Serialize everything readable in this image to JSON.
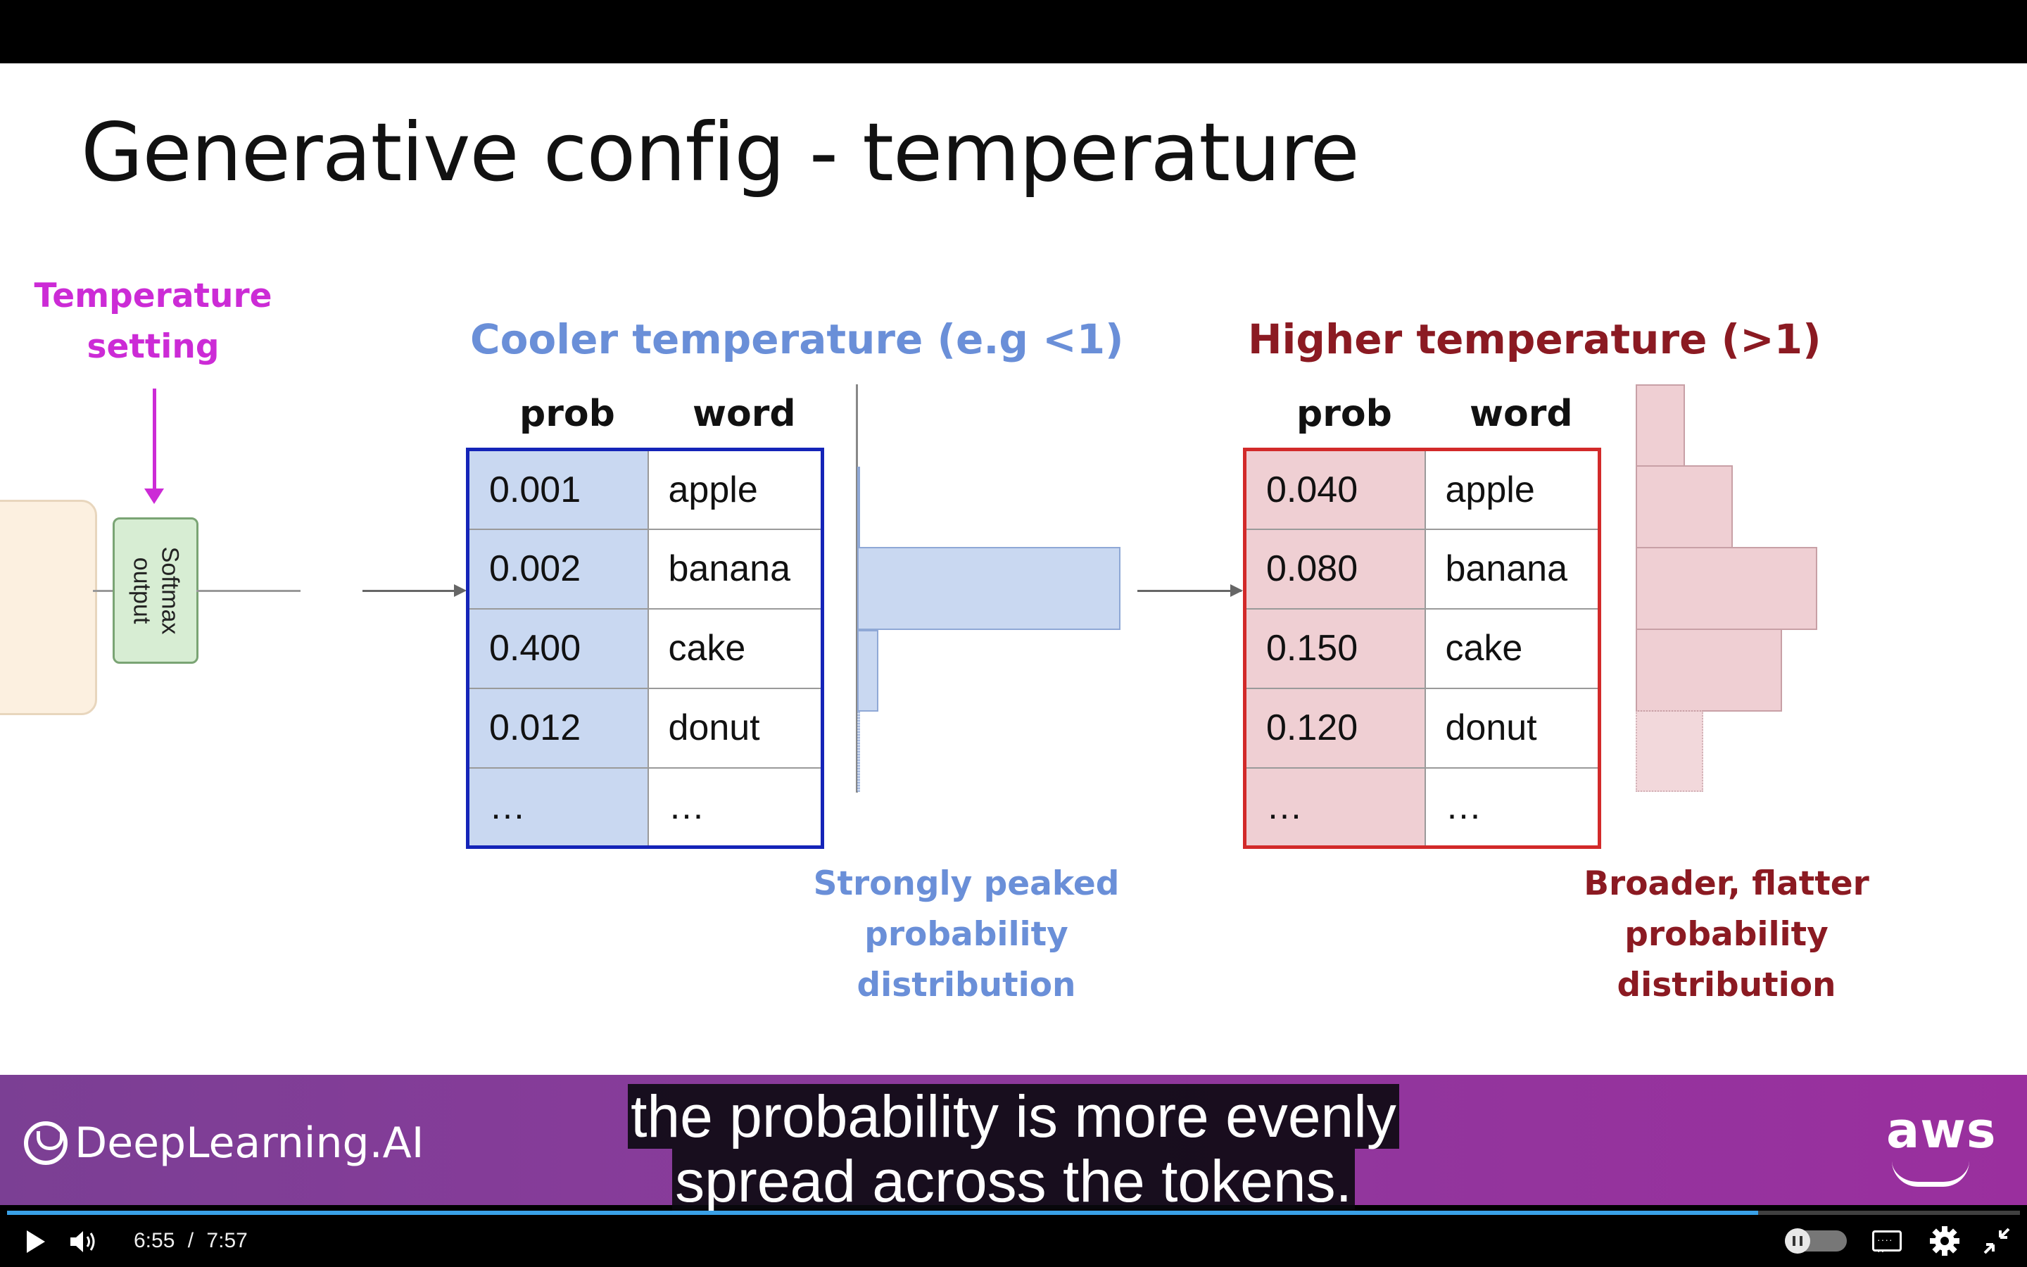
{
  "slide": {
    "title": "Generative config - temperature",
    "temperature_setting": [
      "Temperature",
      "setting"
    ],
    "softmax_label": [
      "Softmax",
      "output"
    ],
    "cool": {
      "title": "Cooler temperature (e.g <1)",
      "col_prob": "prob",
      "col_word": "word",
      "rows": [
        {
          "prob": "0.001",
          "word": "apple"
        },
        {
          "prob": "0.002",
          "word": "banana"
        },
        {
          "prob": "0.400",
          "word": "cake"
        },
        {
          "prob": "0.012",
          "word": "donut"
        },
        {
          "prob": "…",
          "word": "…"
        }
      ],
      "caption": [
        "Strongly peaked",
        "probability",
        "distribution"
      ],
      "color": "#6a8fd8",
      "border_color": "#1424b8"
    },
    "hot": {
      "title": "Higher temperature (>1)",
      "col_prob": "prob",
      "col_word": "word",
      "rows": [
        {
          "prob": "0.040",
          "word": "apple"
        },
        {
          "prob": "0.080",
          "word": "banana"
        },
        {
          "prob": "0.150",
          "word": "cake"
        },
        {
          "prob": "0.120",
          "word": "donut"
        },
        {
          "prob": "…",
          "word": "…"
        }
      ],
      "caption": [
        "Broader, flatter",
        "probability",
        "distribution"
      ],
      "color": "#8b1a22",
      "border_color": "#d22a2a"
    },
    "histogram_values": {
      "cool": [
        0.001,
        0.002,
        0.4,
        0.012
      ],
      "hot": [
        0.04,
        0.08,
        0.15,
        0.12
      ]
    }
  },
  "branding": {
    "left_logo": "DeepLearning.AI",
    "right_logo": "aws"
  },
  "subtitles": {
    "line1": "the probability is more evenly",
    "line2": "spread across the tokens."
  },
  "player": {
    "current_time": "6:55",
    "separator": "/",
    "duration": "7:57",
    "progress_fraction": 0.87,
    "progress_color": "#39a0e6",
    "icons": [
      "play-icon",
      "volume-icon",
      "speed-toggle",
      "captions-icon",
      "settings-icon",
      "exit-fullscreen-icon"
    ]
  }
}
